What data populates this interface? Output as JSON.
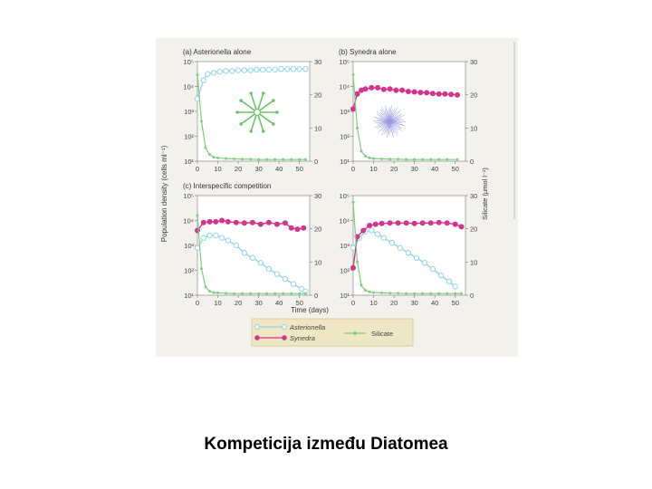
{
  "caption": "Kompeticija između Diatomea",
  "colors": {
    "asterionella": "#8fd9e8",
    "synedra": "#d6338a",
    "silicate": "#7ed07e",
    "figure_bg": "#f3f1ec",
    "legend_bg": "#efe6c4"
  },
  "shared_axes": {
    "ylabel_left": "Population density (cells ml⁻¹)",
    "ylabel_right": "Silicate (µmol l⁻¹)",
    "xlabel": "Time (days)"
  },
  "legend": {
    "asterionella": "Asterionella",
    "synedra": "Synedra",
    "silicate": "Silicate"
  },
  "chart_data": [
    {
      "type": "line",
      "panel_label": "(a) Asterionella alone",
      "xlim": [
        0,
        55
      ],
      "xticks": [
        0,
        10,
        20,
        30,
        40,
        50
      ],
      "ylim_left_log10": [
        1,
        5
      ],
      "yticks_left": [
        "10¹",
        "10²",
        "10³",
        "10⁴",
        "10⁵"
      ],
      "ylim_right": [
        0,
        30
      ],
      "yticks_right": [
        0,
        10,
        20,
        30
      ],
      "series": [
        {
          "name": "Asterionella",
          "axis": "left",
          "log10_values": true,
          "x": [
            0,
            3,
            5,
            8,
            11,
            14,
            17,
            20,
            23,
            26,
            29,
            32,
            35,
            38,
            41,
            44,
            47,
            50,
            53
          ],
          "y": [
            3.5,
            4.25,
            4.5,
            4.55,
            4.6,
            4.62,
            4.62,
            4.65,
            4.65,
            4.65,
            4.67,
            4.67,
            4.68,
            4.68,
            4.7,
            4.7,
            4.7,
            4.7,
            4.7
          ]
        },
        {
          "name": "Silicate",
          "axis": "right",
          "x": [
            0,
            2,
            4,
            6,
            8,
            10,
            14,
            18,
            22,
            26,
            30,
            34,
            38,
            42,
            46,
            50,
            53
          ],
          "y": [
            26,
            12,
            4,
            2,
            1.2,
            1,
            0.8,
            0.7,
            0.6,
            0.6,
            0.5,
            0.5,
            0.5,
            0.5,
            0.5,
            0.5,
            0.5
          ]
        }
      ]
    },
    {
      "type": "line",
      "panel_label": "(b) Synedra alone",
      "xlim": [
        0,
        55
      ],
      "xticks": [
        0,
        10,
        20,
        30,
        40,
        50
      ],
      "ylim_left_log10": [
        1,
        5
      ],
      "yticks_left": [
        "10¹",
        "10²",
        "10³",
        "10⁴",
        "10⁵"
      ],
      "ylim_right": [
        0,
        30
      ],
      "yticks_right": [
        0,
        10,
        20,
        30
      ],
      "series": [
        {
          "name": "Synedra",
          "axis": "left",
          "log10_values": true,
          "x": [
            0,
            2,
            4,
            6,
            9,
            12,
            15,
            18,
            21,
            24,
            27,
            30,
            33,
            36,
            39,
            42,
            45,
            48,
            51
          ],
          "y": [
            3.1,
            3.7,
            3.85,
            3.9,
            3.95,
            3.95,
            3.88,
            3.9,
            3.85,
            3.85,
            3.8,
            3.78,
            3.76,
            3.75,
            3.72,
            3.7,
            3.7,
            3.68,
            3.66
          ]
        },
        {
          "name": "Silicate",
          "axis": "right",
          "x": [
            0,
            2,
            4,
            6,
            8,
            10,
            14,
            18,
            22,
            26,
            30,
            34,
            38,
            42,
            46,
            51
          ],
          "y": [
            26,
            10,
            3,
            1.5,
            1,
            0.8,
            0.7,
            0.6,
            0.6,
            0.5,
            0.5,
            0.5,
            0.5,
            0.5,
            0.5,
            0.5
          ]
        }
      ]
    },
    {
      "type": "line",
      "panel_label": "(c) Interspecific competition",
      "xlim": [
        0,
        55
      ],
      "xticks": [
        0,
        10,
        20,
        30,
        40,
        50
      ],
      "ylim_left_log10": [
        1,
        5
      ],
      "yticks_left": [
        "10¹",
        "10²",
        "10³",
        "10⁴",
        "10⁵"
      ],
      "ylim_right": [
        0,
        30
      ],
      "yticks_right": [
        0,
        10,
        20,
        30
      ],
      "series": [
        {
          "name": "Asterionella",
          "axis": "left",
          "log10_values": true,
          "x": [
            0,
            3,
            6,
            9,
            12,
            15,
            19,
            23,
            27,
            31,
            35,
            39,
            43,
            47,
            51,
            53
          ],
          "y": [
            2.9,
            3.3,
            3.4,
            3.4,
            3.3,
            3.2,
            3.0,
            2.7,
            2.5,
            2.3,
            2.05,
            1.85,
            1.65,
            1.45,
            1.25,
            1.15
          ]
        },
        {
          "name": "Synedra",
          "axis": "left",
          "log10_values": true,
          "x": [
            0,
            3,
            6,
            9,
            12,
            15,
            19,
            23,
            27,
            31,
            35,
            39,
            43,
            46,
            49,
            52
          ],
          "y": [
            3.6,
            3.92,
            3.95,
            3.95,
            4.0,
            3.95,
            3.92,
            3.9,
            3.92,
            3.85,
            3.92,
            3.85,
            3.9,
            3.7,
            3.65,
            3.7
          ]
        },
        {
          "name": "Silicate",
          "axis": "right",
          "x": [
            0,
            2,
            4,
            6,
            8,
            10,
            14,
            18,
            22,
            26,
            30,
            34,
            38,
            42,
            46,
            50,
            53
          ],
          "y": [
            24,
            8,
            2.5,
            1.2,
            0.8,
            0.7,
            0.6,
            0.5,
            0.5,
            0.5,
            0.5,
            0.5,
            0.5,
            0.5,
            0.5,
            0.5,
            0.5
          ]
        }
      ]
    },
    {
      "type": "line",
      "panel_label": "",
      "xlim": [
        0,
        55
      ],
      "xticks": [
        0,
        10,
        20,
        30,
        40,
        50
      ],
      "ylim_left_log10": [
        1,
        5
      ],
      "yticks_left": [
        "10¹",
        "10²",
        "10³",
        "10⁴",
        "10⁵"
      ],
      "ylim_right": [
        0,
        30
      ],
      "yticks_right": [
        0,
        10,
        20,
        30
      ],
      "series": [
        {
          "name": "Asterionella",
          "axis": "left",
          "log10_values": true,
          "x": [
            0,
            3,
            6,
            9,
            12,
            15,
            19,
            23,
            27,
            31,
            35,
            39,
            43,
            47,
            50
          ],
          "y": [
            2.9,
            3.3,
            3.55,
            3.6,
            3.45,
            3.3,
            3.1,
            2.9,
            2.7,
            2.5,
            2.3,
            2.05,
            1.8,
            1.55,
            1.35
          ]
        },
        {
          "name": "Synedra",
          "axis": "left",
          "log10_values": true,
          "x": [
            0,
            2,
            5,
            8,
            11,
            14,
            18,
            22,
            26,
            30,
            34,
            38,
            42,
            46,
            50,
            53
          ],
          "y": [
            2.1,
            3.35,
            3.6,
            3.8,
            3.85,
            3.88,
            3.9,
            3.9,
            3.9,
            3.88,
            3.9,
            3.9,
            3.92,
            3.9,
            3.85,
            3.75
          ]
        },
        {
          "name": "Silicate",
          "axis": "right",
          "x": [
            0,
            2,
            4,
            6,
            8,
            10,
            14,
            18,
            22,
            26,
            30,
            34,
            38,
            42,
            46,
            50,
            53
          ],
          "y": [
            28,
            10,
            3,
            1.5,
            1,
            0.8,
            0.7,
            0.6,
            0.6,
            0.5,
            0.5,
            0.5,
            0.5,
            0.5,
            0.5,
            0.5,
            0.5
          ]
        }
      ]
    }
  ]
}
